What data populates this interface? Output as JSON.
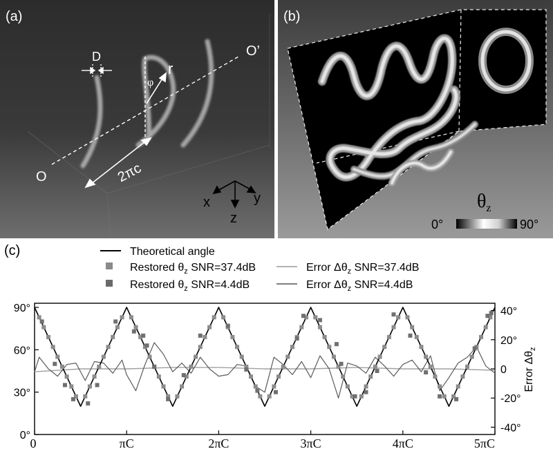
{
  "panel_a": {
    "label": "(a)",
    "annotations": {
      "diameter": "D",
      "radius": "r",
      "angle": "φ",
      "pitch": "2πc",
      "origin": "O",
      "origin_end": "O’"
    },
    "axes": {
      "x": "x",
      "y": "y",
      "z": "z"
    }
  },
  "panel_b": {
    "label": "(b)",
    "colorbar": {
      "title": "θ",
      "title_sub": "z",
      "min_label": "0°",
      "max_label": "90°"
    }
  },
  "panel_c": {
    "label": "(c)",
    "legend": {
      "theoretical": "Theoretical angle",
      "restored_high_prefix": "Restored θ",
      "restored_high_sub": "z",
      "restored_high_suffix": " SNR=37.4dB",
      "restored_low_prefix": "Restored θ",
      "restored_low_sub": "z",
      "restored_low_suffix": " SNR=4.4dB",
      "error_high": "Error Δθ",
      "error_high_sub": "z",
      "error_high_suffix": " SNR=37.4dB",
      "error_low": "Error Δθ",
      "error_low_sub": "z",
      "error_low_suffix": " SNR=4.4dB"
    },
    "right_axis_title": "Error Δθ",
    "right_axis_title_sub": "z"
  },
  "chart_data": {
    "type": "line",
    "x_tick_labels": [
      "0",
      "πC",
      "2πC",
      "3πC",
      "4πC",
      "5πC"
    ],
    "x_tick_values": [
      0,
      1,
      2,
      3,
      4,
      5
    ],
    "xlim": [
      0,
      5
    ],
    "left_y_tick_labels": [
      "0°",
      "30°",
      "60°",
      "90°"
    ],
    "left_y_tick_values": [
      0,
      30,
      60,
      90
    ],
    "ylim_left": [
      0,
      90
    ],
    "right_y_tick_labels": [
      "40°",
      "20°",
      "0",
      "-20°",
      "-40°"
    ],
    "right_y_tick_values": [
      40,
      20,
      0,
      -20,
      -40
    ],
    "ylim_right": [
      -45,
      45
    ],
    "theoretical": {
      "description": "triangular wave between 20 and 90 degrees",
      "x": [
        0,
        0.5,
        1,
        1.5,
        2,
        2.5,
        3,
        3.5,
        4,
        4.5,
        5
      ],
      "y": [
        90,
        20,
        90,
        20,
        90,
        20,
        90,
        20,
        90,
        20,
        90
      ]
    },
    "series": [
      {
        "name": "Restored θz SNR=37.4dB",
        "axis": "left",
        "x": [
          0.05,
          0.1,
          0.15,
          0.2,
          0.25,
          0.3,
          0.35,
          0.4,
          0.45,
          0.55,
          0.6,
          0.65,
          0.7,
          0.75,
          0.8,
          0.85,
          0.9,
          0.95,
          1.05,
          1.1,
          1.15,
          1.2,
          1.25,
          1.3,
          1.35,
          1.4,
          1.45,
          1.55,
          1.6,
          1.65,
          1.7,
          1.75,
          1.8,
          1.85,
          1.9,
          1.95,
          2.05,
          2.1,
          2.15,
          2.2,
          2.25,
          2.3,
          2.35,
          2.4,
          2.45,
          2.55,
          2.6,
          2.65,
          2.7,
          2.75,
          2.8,
          2.85,
          2.9,
          2.95,
          3.05,
          3.1,
          3.15,
          3.2,
          3.25,
          3.3,
          3.35,
          3.4,
          3.45,
          3.55,
          3.6,
          3.65,
          3.7,
          3.75,
          3.8,
          3.85,
          3.9,
          3.95,
          4.05,
          4.1,
          4.15,
          4.2,
          4.25,
          4.3,
          4.35,
          4.4,
          4.45,
          4.55,
          4.6,
          4.65,
          4.7,
          4.75,
          4.8,
          4.85,
          4.9,
          4.95
        ],
        "y": [
          83,
          76,
          69,
          62,
          55,
          48,
          41,
          34,
          27,
          27,
          34,
          41,
          48,
          55,
          62,
          69,
          76,
          83,
          83,
          76,
          69,
          62,
          55,
          48,
          41,
          34,
          27,
          27,
          34,
          41,
          48,
          55,
          62,
          69,
          76,
          83,
          83,
          76,
          69,
          62,
          55,
          48,
          41,
          34,
          27,
          27,
          34,
          41,
          48,
          55,
          62,
          69,
          76,
          83,
          83,
          76,
          69,
          62,
          55,
          48,
          41,
          34,
          27,
          27,
          34,
          41,
          48,
          55,
          62,
          69,
          76,
          83,
          83,
          76,
          69,
          62,
          55,
          48,
          41,
          34,
          27,
          27,
          34,
          41,
          48,
          55,
          62,
          69,
          76,
          83
        ]
      },
      {
        "name": "Restored θz SNR=4.4dB",
        "axis": "left",
        "x": [
          0.08,
          0.22,
          0.33,
          0.42,
          0.58,
          0.68,
          0.88,
          1.08,
          1.18,
          1.22,
          1.3,
          1.45,
          1.62,
          1.8,
          2.1,
          2.3,
          2.42,
          2.62,
          2.85,
          2.92,
          3.1,
          3.28,
          3.33,
          3.48,
          3.6,
          3.72,
          3.9,
          4.08,
          4.25,
          4.4,
          4.58,
          4.78,
          4.92,
          4.96
        ],
        "y": [
          80,
          50,
          35,
          25,
          22,
          35,
          80,
          73,
          70,
          63,
          48,
          25,
          42,
          70,
          77,
          46,
          31,
          30,
          68,
          84,
          81,
          64,
          50,
          27,
          30,
          45,
          85,
          70,
          44,
          27,
          25,
          61,
          84,
          86
        ]
      },
      {
        "name": "Error Δθz SNR=37.4dB",
        "axis": "right",
        "x": [
          0,
          0.5,
          1,
          1.5,
          2,
          2.5,
          3,
          3.5,
          4,
          4.5,
          5
        ],
        "y": [
          -2,
          0,
          0,
          1,
          1,
          0,
          0,
          1,
          0,
          0,
          -1
        ]
      },
      {
        "name": "Error Δθz SNR=4.4dB",
        "axis": "right",
        "x": [
          0,
          0.05,
          0.15,
          0.25,
          0.35,
          0.45,
          0.55,
          0.65,
          0.75,
          0.85,
          0.95,
          1.0,
          1.1,
          1.2,
          1.3,
          1.4,
          1.5,
          1.6,
          1.7,
          1.8,
          1.9,
          2.0,
          2.1,
          2.2,
          2.3,
          2.4,
          2.5,
          2.6,
          2.7,
          2.8,
          2.9,
          3.0,
          3.1,
          3.2,
          3.3,
          3.4,
          3.5,
          3.6,
          3.7,
          3.8,
          3.9,
          4.0,
          4.1,
          4.2,
          4.3,
          4.4,
          4.5,
          4.6,
          4.7,
          4.8,
          4.9,
          5.0
        ],
        "y": [
          -2,
          8,
          0,
          -5,
          3,
          4,
          -8,
          5,
          4,
          -3,
          6,
          -4,
          -15,
          3,
          18,
          10,
          -2,
          4,
          -3,
          8,
          0,
          -5,
          -4,
          3,
          2,
          -12,
          -16,
          8,
          3,
          -4,
          5,
          -6,
          9,
          0,
          -20,
          4,
          2,
          -3,
          8,
          2,
          -5,
          3,
          6,
          -2,
          9,
          -15,
          -6,
          4,
          8,
          15,
          2,
          -3
        ]
      }
    ]
  }
}
